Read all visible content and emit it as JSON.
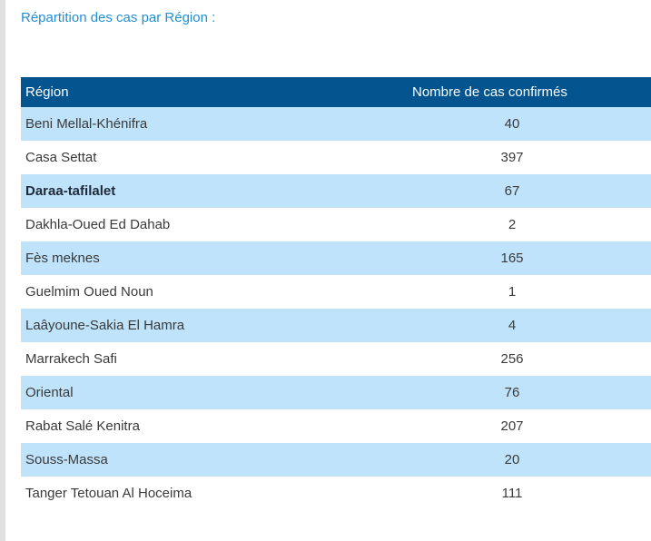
{
  "section": {
    "title": "Répartition des cas par Région :"
  },
  "table": {
    "headers": [
      "Région",
      "Nombre de cas confirmés"
    ],
    "rows": [
      {
        "region": "Beni Mellal-Khénifra",
        "cases": "40"
      },
      {
        "region": "Casa Settat",
        "cases": "397"
      },
      {
        "region": "Daraa-tafilalet",
        "cases": "67"
      },
      {
        "region": "Dakhla-Oued Ed Dahab",
        "cases": "2"
      },
      {
        "region": "Fès meknes",
        "cases": "165"
      },
      {
        "region": "Guelmim Oued Noun",
        "cases": "1"
      },
      {
        "region": "Laâyoune-Sakia El Hamra",
        "cases": "4"
      },
      {
        "region": "Marrakech Safi",
        "cases": "256"
      },
      {
        "region": "Oriental",
        "cases": "76"
      },
      {
        "region": "Rabat Salé Kenitra",
        "cases": "207"
      },
      {
        "region": "Souss-Massa",
        "cases": "20"
      },
      {
        "region": "Tanger Tetouan Al Hoceima",
        "cases": "111"
      }
    ]
  },
  "colors": {
    "title_text": "#1f8fd6",
    "header_background": "#04558f",
    "header_text": "#ffffff",
    "striped_row": "#bfe3fb",
    "body_text": "#3a3a3a"
  }
}
